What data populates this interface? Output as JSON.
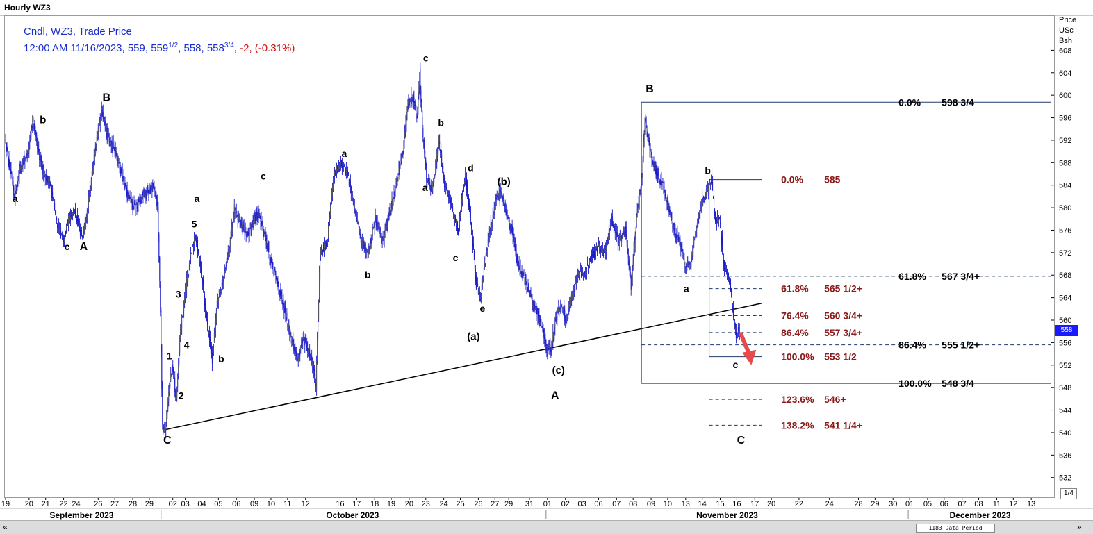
{
  "window_title": "Hourly WZ3",
  "legend": {
    "line1": "Cndl, WZ3, Trade Price",
    "line2_prefix": "12:00 AM 11/16/2023, 559, 559",
    "open_frac": "1/2",
    "line2_mid": ", 558, 558",
    "close_frac": "3/4",
    "line2_sep": ", ",
    "change": "-2, (-0.31%)"
  },
  "price_unit_lines": [
    "Price",
    "USc",
    "Bsh"
  ],
  "data_period_label": "1183 Data Period",
  "zoom_label": "1/4",
  "current_price_tag": "558",
  "colors": {
    "candles": "#1a1ac8",
    "fib_red": "#8b1a1a",
    "fib_line": "#1f3b6b",
    "arrow": "#e84a4a",
    "current_tag": "#1a1aff"
  },
  "chart_data": {
    "type": "candlestick",
    "title": "",
    "instrument": "WZ3",
    "interval": "Hourly",
    "y_axis": {
      "side": "right",
      "unit": "USc/Bsh",
      "ylim": [
        529,
        612
      ],
      "ticks": [
        532,
        536,
        540,
        544,
        548,
        552,
        556,
        560,
        564,
        568,
        572,
        576,
        580,
        584,
        588,
        592,
        596,
        600,
        604,
        608
      ]
    },
    "x_axis": {
      "ticks": [
        {
          "label": "19",
          "i": 0
        },
        {
          "label": "20",
          "i": 34
        },
        {
          "label": "21",
          "i": 58
        },
        {
          "label": "22",
          "i": 84
        },
        {
          "label": "24",
          "i": 102
        },
        {
          "label": "26",
          "i": 134
        },
        {
          "label": "27",
          "i": 158
        },
        {
          "label": "28",
          "i": 184
        },
        {
          "label": "29",
          "i": 208
        },
        {
          "label": "02",
          "i": 242
        },
        {
          "label": "03",
          "i": 260
        },
        {
          "label": "04",
          "i": 284
        },
        {
          "label": "05",
          "i": 308
        },
        {
          "label": "06",
          "i": 334
        },
        {
          "label": "09",
          "i": 360
        },
        {
          "label": "10",
          "i": 384
        },
        {
          "label": "11",
          "i": 408
        },
        {
          "label": "12",
          "i": 434
        },
        {
          "label": "16",
          "i": 484
        },
        {
          "label": "17",
          "i": 508
        },
        {
          "label": "18",
          "i": 534
        },
        {
          "label": "19",
          "i": 558
        },
        {
          "label": "20",
          "i": 584
        },
        {
          "label": "23",
          "i": 608
        },
        {
          "label": "24",
          "i": 634
        },
        {
          "label": "25",
          "i": 658
        },
        {
          "label": "26",
          "i": 684
        },
        {
          "label": "27",
          "i": 708
        },
        {
          "label": "29",
          "i": 728
        },
        {
          "label": "31",
          "i": 758
        },
        {
          "label": "01",
          "i": 784
        },
        {
          "label": "02",
          "i": 810
        },
        {
          "label": "03",
          "i": 834
        },
        {
          "label": "06",
          "i": 858
        },
        {
          "label": "07",
          "i": 884
        },
        {
          "label": "08",
          "i": 908
        },
        {
          "label": "09",
          "i": 934
        },
        {
          "label": "10",
          "i": 958
        },
        {
          "label": "13",
          "i": 984
        },
        {
          "label": "14",
          "i": 1008
        },
        {
          "label": "15",
          "i": 1034
        },
        {
          "label": "16",
          "i": 1058
        },
        {
          "label": "17",
          "i": 1084
        },
        {
          "label": "20",
          "i": 1108
        },
        {
          "label": "22",
          "i": 1148
        },
        {
          "label": "24",
          "i": 1192
        },
        {
          "label": "28",
          "i": 1234
        },
        {
          "label": "29",
          "i": 1258
        },
        {
          "label": "30",
          "i": 1284
        },
        {
          "label": "01",
          "i": 1308
        },
        {
          "label": "05",
          "i": 1334
        },
        {
          "label": "06",
          "i": 1358
        },
        {
          "label": "07",
          "i": 1384
        },
        {
          "label": "08",
          "i": 1408
        },
        {
          "label": "11",
          "i": 1434
        },
        {
          "label": "12",
          "i": 1458
        },
        {
          "label": "13",
          "i": 1484
        }
      ],
      "months": [
        {
          "label": "September 2023",
          "i": 110
        },
        {
          "label": "October 2023",
          "i": 502
        },
        {
          "label": "November 2023",
          "i": 1044
        },
        {
          "label": "December 2023",
          "i": 1410
        }
      ],
      "month_dividers": [
        225,
        782,
        1306
      ]
    },
    "price_path": [
      [
        0,
        592
      ],
      [
        8,
        586
      ],
      [
        14,
        582
      ],
      [
        22,
        587
      ],
      [
        34,
        590
      ],
      [
        40,
        596
      ],
      [
        48,
        590
      ],
      [
        56,
        586
      ],
      [
        66,
        584
      ],
      [
        74,
        578
      ],
      [
        84,
        574
      ],
      [
        92,
        578
      ],
      [
        100,
        580
      ],
      [
        108,
        576
      ],
      [
        112,
        575
      ],
      [
        122,
        582
      ],
      [
        130,
        590
      ],
      [
        140,
        597
      ],
      [
        150,
        592
      ],
      [
        160,
        590
      ],
      [
        170,
        586
      ],
      [
        178,
        582
      ],
      [
        188,
        580
      ],
      [
        198,
        582
      ],
      [
        208,
        583
      ],
      [
        216,
        584
      ],
      [
        221,
        580
      ],
      [
        225,
        562
      ],
      [
        228,
        541
      ],
      [
        232,
        540.5
      ],
      [
        236,
        546
      ],
      [
        242,
        552
      ],
      [
        248,
        546
      ],
      [
        254,
        558
      ],
      [
        262,
        566
      ],
      [
        270,
        572
      ],
      [
        276,
        575
      ],
      [
        284,
        569
      ],
      [
        292,
        560
      ],
      [
        300,
        553
      ],
      [
        308,
        564
      ],
      [
        316,
        567
      ],
      [
        326,
        574
      ],
      [
        332,
        580
      ],
      [
        342,
        577
      ],
      [
        352,
        575
      ],
      [
        360,
        578
      ],
      [
        368,
        579
      ],
      [
        378,
        574
      ],
      [
        386,
        570
      ],
      [
        396,
        566
      ],
      [
        406,
        561
      ],
      [
        416,
        556
      ],
      [
        424,
        553
      ],
      [
        432,
        557
      ],
      [
        440,
        554
      ],
      [
        446,
        552
      ],
      [
        450,
        548
      ],
      [
        456,
        572
      ],
      [
        466,
        574
      ],
      [
        476,
        586
      ],
      [
        486,
        588
      ],
      [
        496,
        586
      ],
      [
        506,
        580
      ],
      [
        516,
        574
      ],
      [
        526,
        572
      ],
      [
        536,
        578
      ],
      [
        546,
        574
      ],
      [
        556,
        579
      ],
      [
        566,
        584
      ],
      [
        576,
        590
      ],
      [
        582,
        598
      ],
      [
        590,
        600
      ],
      [
        596,
        596
      ],
      [
        600,
        604
      ],
      [
        604,
        594
      ],
      [
        610,
        585
      ],
      [
        618,
        583
      ],
      [
        628,
        592
      ],
      [
        636,
        584
      ],
      [
        646,
        580
      ],
      [
        656,
        576
      ],
      [
        666,
        586
      ],
      [
        674,
        578
      ],
      [
        682,
        566
      ],
      [
        688,
        564
      ],
      [
        694,
        570
      ],
      [
        702,
        576
      ],
      [
        710,
        581
      ],
      [
        718,
        583
      ],
      [
        726,
        579
      ],
      [
        734,
        576
      ],
      [
        742,
        570
      ],
      [
        750,
        568
      ],
      [
        758,
        565
      ],
      [
        766,
        562
      ],
      [
        774,
        560
      ],
      [
        780,
        557
      ],
      [
        784,
        555
      ],
      [
        790,
        555
      ],
      [
        796,
        560
      ],
      [
        804,
        563
      ],
      [
        812,
        560
      ],
      [
        820,
        564
      ],
      [
        828,
        568
      ],
      [
        838,
        568
      ],
      [
        848,
        571
      ],
      [
        858,
        573
      ],
      [
        868,
        572
      ],
      [
        878,
        578
      ],
      [
        888,
        574
      ],
      [
        898,
        576
      ],
      [
        906,
        566
      ],
      [
        914,
        578
      ],
      [
        922,
        586
      ],
      [
        926,
        596
      ],
      [
        930,
        593
      ],
      [
        936,
        588
      ],
      [
        944,
        586
      ],
      [
        952,
        584
      ],
      [
        960,
        580
      ],
      [
        968,
        576
      ],
      [
        976,
        574
      ],
      [
        984,
        570
      ],
      [
        992,
        570
      ],
      [
        1000,
        576
      ],
      [
        1008,
        581
      ],
      [
        1016,
        583
      ],
      [
        1022,
        585
      ],
      [
        1028,
        578
      ],
      [
        1034,
        578
      ],
      [
        1040,
        570
      ],
      [
        1046,
        568
      ],
      [
        1050,
        566
      ],
      [
        1054,
        560
      ],
      [
        1058,
        557.5
      ],
      [
        1062,
        558.5
      ]
    ],
    "trendline": {
      "from": {
        "i": 230,
        "price": 540.5
      },
      "to": {
        "i": 1094,
        "price": 563
      }
    },
    "wave_labels": [
      {
        "text": "a",
        "i": 14,
        "price": 581,
        "size": 14
      },
      {
        "text": "b",
        "i": 54,
        "price": 595,
        "size": 15
      },
      {
        "text": "c",
        "i": 89,
        "price": 572.5,
        "size": 14
      },
      {
        "text": "A",
        "i": 113,
        "price": 572.5,
        "size": 16
      },
      {
        "text": "B",
        "i": 146,
        "price": 599,
        "size": 16
      },
      {
        "text": "C",
        "i": 234,
        "price": 538,
        "size": 16
      },
      {
        "text": "1",
        "i": 237,
        "price": 553,
        "size": 14
      },
      {
        "text": "2",
        "i": 254,
        "price": 546,
        "size": 14
      },
      {
        "text": "3",
        "i": 250,
        "price": 564,
        "size": 14
      },
      {
        "text": "4",
        "i": 262,
        "price": 555,
        "size": 14
      },
      {
        "text": "5",
        "i": 273,
        "price": 576.5,
        "size": 14
      },
      {
        "text": "a",
        "i": 277,
        "price": 581,
        "size": 14
      },
      {
        "text": "b",
        "i": 312,
        "price": 552.5,
        "size": 14
      },
      {
        "text": "c",
        "i": 373,
        "price": 585,
        "size": 14
      },
      {
        "text": "a",
        "i": 490,
        "price": 589,
        "size": 14
      },
      {
        "text": "b",
        "i": 524,
        "price": 567.5,
        "size": 14
      },
      {
        "text": "c",
        "i": 608,
        "price": 606,
        "size": 14
      },
      {
        "text": "b",
        "i": 630,
        "price": 594.5,
        "size": 14
      },
      {
        "text": "a",
        "i": 607,
        "price": 583,
        "size": 14
      },
      {
        "text": "d",
        "i": 673,
        "price": 586.5,
        "size": 14
      },
      {
        "text": "c",
        "i": 651,
        "price": 570.5,
        "size": 14
      },
      {
        "text": "(b)",
        "i": 721,
        "price": 584,
        "size": 15
      },
      {
        "text": "e",
        "i": 690,
        "price": 561.5,
        "size": 14
      },
      {
        "text": "(a)",
        "i": 677,
        "price": 556.5,
        "size": 15
      },
      {
        "text": "(c)",
        "i": 800,
        "price": 550.5,
        "size": 15
      },
      {
        "text": "A",
        "i": 795,
        "price": 546,
        "size": 16
      },
      {
        "text": "B",
        "i": 932,
        "price": 600.5,
        "size": 16
      },
      {
        "text": "b",
        "i": 1016,
        "price": 586,
        "size": 14
      },
      {
        "text": "a",
        "i": 985,
        "price": 565,
        "size": 14
      },
      {
        "text": "c",
        "i": 1056,
        "price": 551.5,
        "size": 14
      },
      {
        "text": "C",
        "i": 1064,
        "price": 538,
        "size": 16
      }
    ],
    "fib_major": {
      "anchor_i": 920,
      "end_i": 1512,
      "text_i": 1292,
      "levels": [
        {
          "pct": "0.0%",
          "price_text": "598 3/4",
          "price": 598.75,
          "style": "solid"
        },
        {
          "pct": "61.8%",
          "price_text": "567 3/4+",
          "price": 567.8,
          "style": "dashed"
        },
        {
          "pct": "86.4%",
          "price_text": "555 1/2+",
          "price": 555.6,
          "style": "dashed"
        },
        {
          "pct": "100.0%",
          "price_text": "548 3/4",
          "price": 548.75,
          "style": "solid"
        }
      ]
    },
    "fib_minor": {
      "anchor_i": 1018,
      "end_i": 1094,
      "text_i": 1122,
      "levels": [
        {
          "pct": "0.0%",
          "price_text": "585",
          "price": 585,
          "style": "solid"
        },
        {
          "pct": "61.8%",
          "price_text": "565 1/2+",
          "price": 565.6,
          "style": "dashed"
        },
        {
          "pct": "76.4%",
          "price_text": "560 3/4+",
          "price": 560.8,
          "style": "dashed"
        },
        {
          "pct": "86.4%",
          "price_text": "557 3/4+",
          "price": 557.8,
          "style": "dashed"
        },
        {
          "pct": "100.0%",
          "price_text": "553 1/2",
          "price": 553.5,
          "style": "solid"
        }
      ]
    },
    "fib_extensions": {
      "start_i": 1018,
      "end_i": 1094,
      "text_i": 1122,
      "levels": [
        {
          "pct": "123.6%",
          "price_text": "546+",
          "price": 545.9
        },
        {
          "pct": "138.2%",
          "price_text": "541 1/4+",
          "price": 541.3
        }
      ]
    },
    "arrow": {
      "from": {
        "i": 1064,
        "price": 557.5
      },
      "to": {
        "i": 1076,
        "price": 552.5
      }
    }
  }
}
